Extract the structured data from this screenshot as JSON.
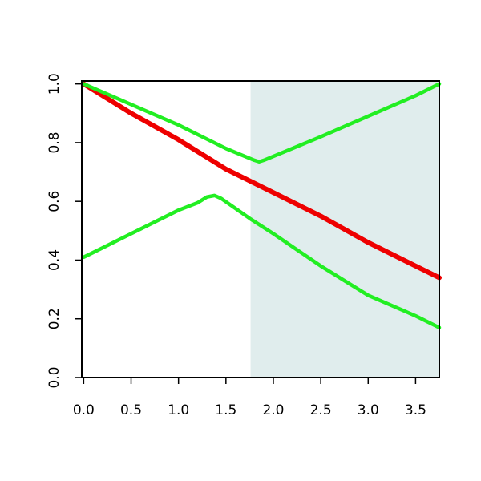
{
  "chart_data": {
    "type": "line",
    "xlim": [
      -0.02,
      3.75
    ],
    "ylim": [
      0,
      1.01
    ],
    "xticks": [
      {
        "value": 0,
        "label": "0.0"
      },
      0.5,
      {
        "value": 1,
        "label": "1.0"
      },
      1.5,
      {
        "value": 2,
        "label": "2.0"
      },
      2.5,
      {
        "value": 3,
        "label": "3.0"
      },
      3.5
    ],
    "yticks": [
      {
        "value": 0,
        "label": "0.0"
      },
      0.2,
      0.4,
      0.6,
      0.8,
      {
        "value": 1,
        "label": "1.0"
      }
    ],
    "shaded_region": {
      "from": 1.76,
      "color": "#e0eded"
    },
    "series": [
      {
        "color": "#ee0000",
        "x": [
          0,
          0.5,
          1.0,
          1.5,
          2.0,
          2.5,
          3.0,
          3.5,
          3.75
        ],
        "values": [
          1.0,
          0.9,
          0.81,
          0.71,
          0.63,
          0.55,
          0.46,
          0.38,
          0.34
        ]
      },
      {
        "color": "#22ee22",
        "x": [
          0,
          0.5,
          1.0,
          1.5,
          1.8,
          1.85,
          1.9,
          2.5,
          3.0,
          3.5,
          3.75
        ],
        "values": [
          1.0,
          0.93,
          0.86,
          0.78,
          0.74,
          0.735,
          0.74,
          0.82,
          0.89,
          0.96,
          1.0
        ]
      },
      {
        "color": "#22ee22",
        "x": [
          0,
          0.5,
          1.0,
          1.2,
          1.3,
          1.38,
          1.45,
          1.76,
          2.0,
          2.5,
          3.0,
          3.5,
          3.75
        ],
        "values": [
          0.41,
          0.49,
          0.57,
          0.595,
          0.615,
          0.62,
          0.61,
          0.54,
          0.49,
          0.38,
          0.28,
          0.21,
          0.17
        ]
      }
    ]
  }
}
